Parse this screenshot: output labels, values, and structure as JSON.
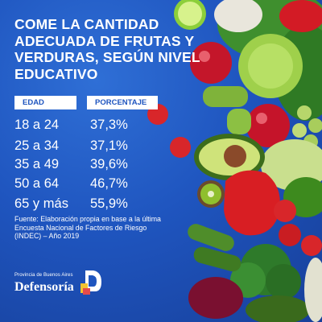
{
  "title": "COME LA CANTIDAD ADECUADA DE FRUTAS Y VERDURAS, SEGÚN NIVEL EDUCATIVO",
  "table": {
    "headers": {
      "col1": "EDAD",
      "col2": "PORCENTAJE"
    },
    "rows": [
      {
        "age": "18 a 24",
        "pct": "37,3%"
      },
      {
        "age": "25 a 34",
        "pct": "37,1%"
      },
      {
        "age": "35 a 49",
        "pct": "39,6%"
      },
      {
        "age": "50 a 64",
        "pct": "46,7%"
      },
      {
        "age": "65 y más",
        "pct": "55,9%"
      }
    ]
  },
  "source": "Fuente: Elaboración propia en base a la última Encuesta Nacional de Factores de Riesgo (INDEC) – Año 2019",
  "logo": {
    "province": "Provincia de Buenos Aires",
    "name": "Defensoría"
  },
  "colors": {
    "background": "#1f55bf",
    "text": "#ffffff",
    "header_text": "#1f55bf"
  }
}
